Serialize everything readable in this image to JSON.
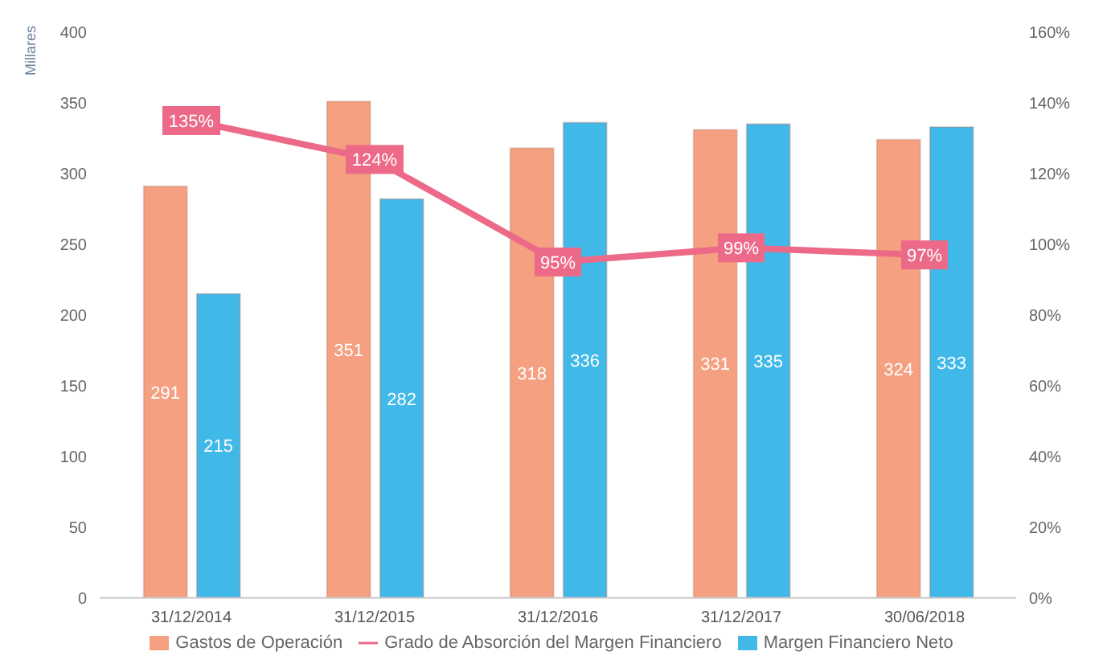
{
  "chart_data": {
    "type": "bar",
    "ylabel": "Millares",
    "categories": [
      "31/12/2014",
      "31/12/2015",
      "31/12/2016",
      "31/12/2017",
      "30/06/2018"
    ],
    "series": [
      {
        "name": "Gastos de Operación",
        "color": "#f4a081",
        "values": [
          291,
          351,
          318,
          331,
          324
        ]
      },
      {
        "name": "Margen Financiero Neto",
        "color": "#40b8e8",
        "values": [
          215,
          282,
          336,
          335,
          333
        ]
      },
      {
        "name": "Grado de Absorción del Margen Financiero",
        "type": "line",
        "axis": "y2",
        "color": "#ec6a88",
        "values": [
          135,
          124,
          95,
          99,
          97
        ],
        "value_labels": [
          "135%",
          "124%",
          "95%",
          "99%",
          "97%"
        ]
      }
    ],
    "ylim": [
      0,
      400
    ],
    "yticks": [
      0,
      50,
      100,
      150,
      200,
      250,
      300,
      350,
      400
    ],
    "y2lim": [
      0,
      160
    ],
    "y2ticks": [
      {
        "value": 0,
        "label": "0%"
      },
      {
        "value": 20,
        "label": "20%"
      },
      {
        "value": 40,
        "label": "40%"
      },
      {
        "value": 60,
        "label": "60%"
      },
      {
        "value": 80,
        "label": "80%"
      },
      {
        "value": 100,
        "label": "100%"
      },
      {
        "value": 120,
        "label": "120%"
      },
      {
        "value": 140,
        "label": "140%"
      },
      {
        "value": 160,
        "label": "160%"
      }
    ],
    "data_labels": true,
    "legend": "bottom",
    "marker": "square"
  }
}
